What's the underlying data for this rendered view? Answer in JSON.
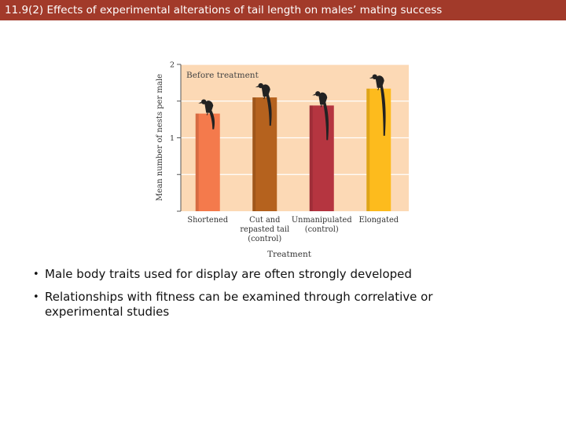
{
  "slide": {
    "title": "11.9(2)  Effects of experimental alterations of tail length on males’ mating success"
  },
  "bullets": [
    "Male body traits used for display are often strongly developed",
    "Relationships with fitness can be examined through correlative or experimental studies"
  ],
  "chart_data": {
    "type": "bar",
    "panel_label": "Before treatment",
    "xlabel": "Treatment",
    "ylabel": "Mean number of nests per male",
    "ylim": [
      0,
      2
    ],
    "yticks": [
      0,
      0.5,
      1,
      1.5,
      2
    ],
    "ytick_labels": [
      "",
      "",
      "1",
      "",
      "2"
    ],
    "categories": [
      [
        "Shortened"
      ],
      [
        "Cut and",
        "repasted tail",
        "(control)"
      ],
      [
        "Unmanipulated",
        "(control)"
      ],
      [
        "Elongated"
      ]
    ],
    "values": [
      1.33,
      1.55,
      1.44,
      1.67
    ],
    "bar_colors": [
      "#f47a4c",
      "#b5621e",
      "#b53540",
      "#fdbb1d"
    ],
    "tail_icons": [
      "bird-short-tail-icon",
      "bird-medium-tail-icon",
      "bird-normal-tail-icon",
      "bird-long-tail-icon"
    ],
    "plot_background": "#fcd9b5",
    "grid": true
  }
}
